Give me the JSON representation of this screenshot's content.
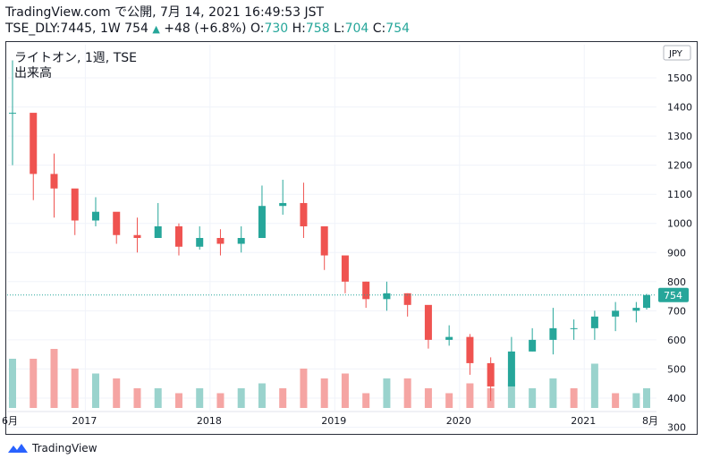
{
  "header": {
    "line1": "TradingView.com で公開, 7月 14, 2021 16:49:53 JST",
    "symbol": "TSE_DLY:7445, 1W",
    "last": "754",
    "change_icon": "triangle-up-icon",
    "change": "+48 (+6.8%)",
    "o_label": "O:",
    "o": "730",
    "h_label": "H:",
    "h": "758",
    "l_label": "L:",
    "l": "704",
    "c_label": "C:",
    "c": "754"
  },
  "legend": {
    "title": "ライトオン, 1週, TSE",
    "volume_label": "出来高"
  },
  "footer": {
    "logo_icon": "tradingview-logo-icon",
    "brand": "TradingView"
  },
  "colors": {
    "up": "#26a69a",
    "down": "#ef5350",
    "volume_up": "#9ad3cd",
    "volume_down": "#f5a5a3",
    "axis_text": "#131722"
  },
  "chart_data": {
    "type": "candlestick",
    "currency": "JPY",
    "price_axis": {
      "ylim": [
        280,
        1620
      ],
      "ticks": [
        300,
        400,
        500,
        600,
        700,
        800,
        900,
        1000,
        1100,
        1200,
        1300,
        1400,
        1500
      ]
    },
    "time_axis": {
      "start_label": "6月",
      "ticks": [
        "2017",
        "2018",
        "2019",
        "2020",
        "2021"
      ],
      "end_label": "8月"
    },
    "last_price": 754,
    "series": [
      {
        "name": "price",
        "values": [
          {
            "x": "2016-06",
            "close": 1380,
            "high": 1560,
            "low": 1200
          },
          {
            "x": "2016-08",
            "close": 1170,
            "high": 1300,
            "low": 1080
          },
          {
            "x": "2016-10",
            "close": 1120,
            "high": 1240,
            "low": 1020
          },
          {
            "x": "2016-12",
            "close": 1010,
            "high": 1100,
            "low": 960
          },
          {
            "x": "2017-02",
            "close": 1040,
            "high": 1090,
            "low": 990
          },
          {
            "x": "2017-04",
            "close": 960,
            "high": 1030,
            "low": 930
          },
          {
            "x": "2017-06",
            "close": 950,
            "high": 1020,
            "low": 900
          },
          {
            "x": "2017-08",
            "close": 990,
            "high": 1070,
            "low": 960
          },
          {
            "x": "2017-10",
            "close": 920,
            "high": 1000,
            "low": 890
          },
          {
            "x": "2017-12",
            "close": 950,
            "high": 990,
            "low": 910
          },
          {
            "x": "2018-02",
            "close": 930,
            "high": 980,
            "low": 890
          },
          {
            "x": "2018-04",
            "close": 950,
            "high": 990,
            "low": 900
          },
          {
            "x": "2018-06",
            "close": 1060,
            "high": 1130,
            "low": 1000
          },
          {
            "x": "2018-08",
            "close": 1070,
            "high": 1150,
            "low": 1030
          },
          {
            "x": "2018-10",
            "close": 990,
            "high": 1140,
            "low": 950
          },
          {
            "x": "2018-12",
            "close": 890,
            "high": 950,
            "low": 840
          },
          {
            "x": "2019-02",
            "close": 800,
            "high": 880,
            "low": 760
          },
          {
            "x": "2019-04",
            "close": 740,
            "high": 800,
            "low": 710
          },
          {
            "x": "2019-06",
            "close": 760,
            "high": 800,
            "low": 700
          },
          {
            "x": "2019-08",
            "close": 720,
            "high": 760,
            "low": 680
          },
          {
            "x": "2019-10",
            "close": 600,
            "high": 690,
            "low": 570
          },
          {
            "x": "2019-12",
            "close": 610,
            "high": 650,
            "low": 580
          },
          {
            "x": "2020-02",
            "close": 520,
            "high": 620,
            "low": 480
          },
          {
            "x": "2020-04",
            "close": 440,
            "high": 540,
            "low": 390
          },
          {
            "x": "2020-06",
            "close": 560,
            "high": 610,
            "low": 470
          },
          {
            "x": "2020-08",
            "close": 600,
            "high": 640,
            "low": 560
          },
          {
            "x": "2020-10",
            "close": 640,
            "high": 710,
            "low": 550
          },
          {
            "x": "2020-12",
            "close": 640,
            "high": 670,
            "low": 600
          },
          {
            "x": "2021-02",
            "close": 680,
            "high": 700,
            "low": 600
          },
          {
            "x": "2021-04",
            "close": 700,
            "high": 730,
            "low": 630
          },
          {
            "x": "2021-06",
            "close": 710,
            "high": 730,
            "low": 660
          },
          {
            "x": "2021-07",
            "close": 754,
            "high": 758,
            "low": 704
          }
        ]
      },
      {
        "name": "volume",
        "values": [
          {
            "x": "2016-06",
            "v": 0.5,
            "dir": "up"
          },
          {
            "x": "2016-08",
            "v": 0.5,
            "dir": "down"
          },
          {
            "x": "2016-10",
            "v": 0.6,
            "dir": "down"
          },
          {
            "x": "2016-12",
            "v": 0.4,
            "dir": "down"
          },
          {
            "x": "2017-02",
            "v": 0.35,
            "dir": "up"
          },
          {
            "x": "2017-04",
            "v": 0.3,
            "dir": "down"
          },
          {
            "x": "2017-06",
            "v": 0.2,
            "dir": "down"
          },
          {
            "x": "2017-08",
            "v": 0.2,
            "dir": "up"
          },
          {
            "x": "2017-10",
            "v": 0.15,
            "dir": "down"
          },
          {
            "x": "2017-12",
            "v": 0.2,
            "dir": "up"
          },
          {
            "x": "2018-02",
            "v": 0.15,
            "dir": "down"
          },
          {
            "x": "2018-04",
            "v": 0.2,
            "dir": "up"
          },
          {
            "x": "2018-06",
            "v": 0.25,
            "dir": "up"
          },
          {
            "x": "2018-08",
            "v": 0.2,
            "dir": "down"
          },
          {
            "x": "2018-10",
            "v": 0.4,
            "dir": "down"
          },
          {
            "x": "2018-12",
            "v": 0.3,
            "dir": "down"
          },
          {
            "x": "2019-02",
            "v": 0.35,
            "dir": "down"
          },
          {
            "x": "2019-04",
            "v": 0.15,
            "dir": "down"
          },
          {
            "x": "2019-06",
            "v": 0.3,
            "dir": "up"
          },
          {
            "x": "2019-08",
            "v": 0.3,
            "dir": "down"
          },
          {
            "x": "2019-10",
            "v": 0.2,
            "dir": "down"
          },
          {
            "x": "2019-12",
            "v": 0.15,
            "dir": "down"
          },
          {
            "x": "2020-02",
            "v": 0.25,
            "dir": "down"
          },
          {
            "x": "2020-04",
            "v": 0.2,
            "dir": "down"
          },
          {
            "x": "2020-06",
            "v": 0.25,
            "dir": "up"
          },
          {
            "x": "2020-08",
            "v": 0.2,
            "dir": "up"
          },
          {
            "x": "2020-10",
            "v": 0.3,
            "dir": "up"
          },
          {
            "x": "2020-12",
            "v": 0.2,
            "dir": "down"
          },
          {
            "x": "2021-02",
            "v": 0.45,
            "dir": "up"
          },
          {
            "x": "2021-04",
            "v": 0.15,
            "dir": "down"
          },
          {
            "x": "2021-06",
            "v": 0.15,
            "dir": "up"
          },
          {
            "x": "2021-07",
            "v": 0.2,
            "dir": "up"
          }
        ]
      }
    ]
  }
}
